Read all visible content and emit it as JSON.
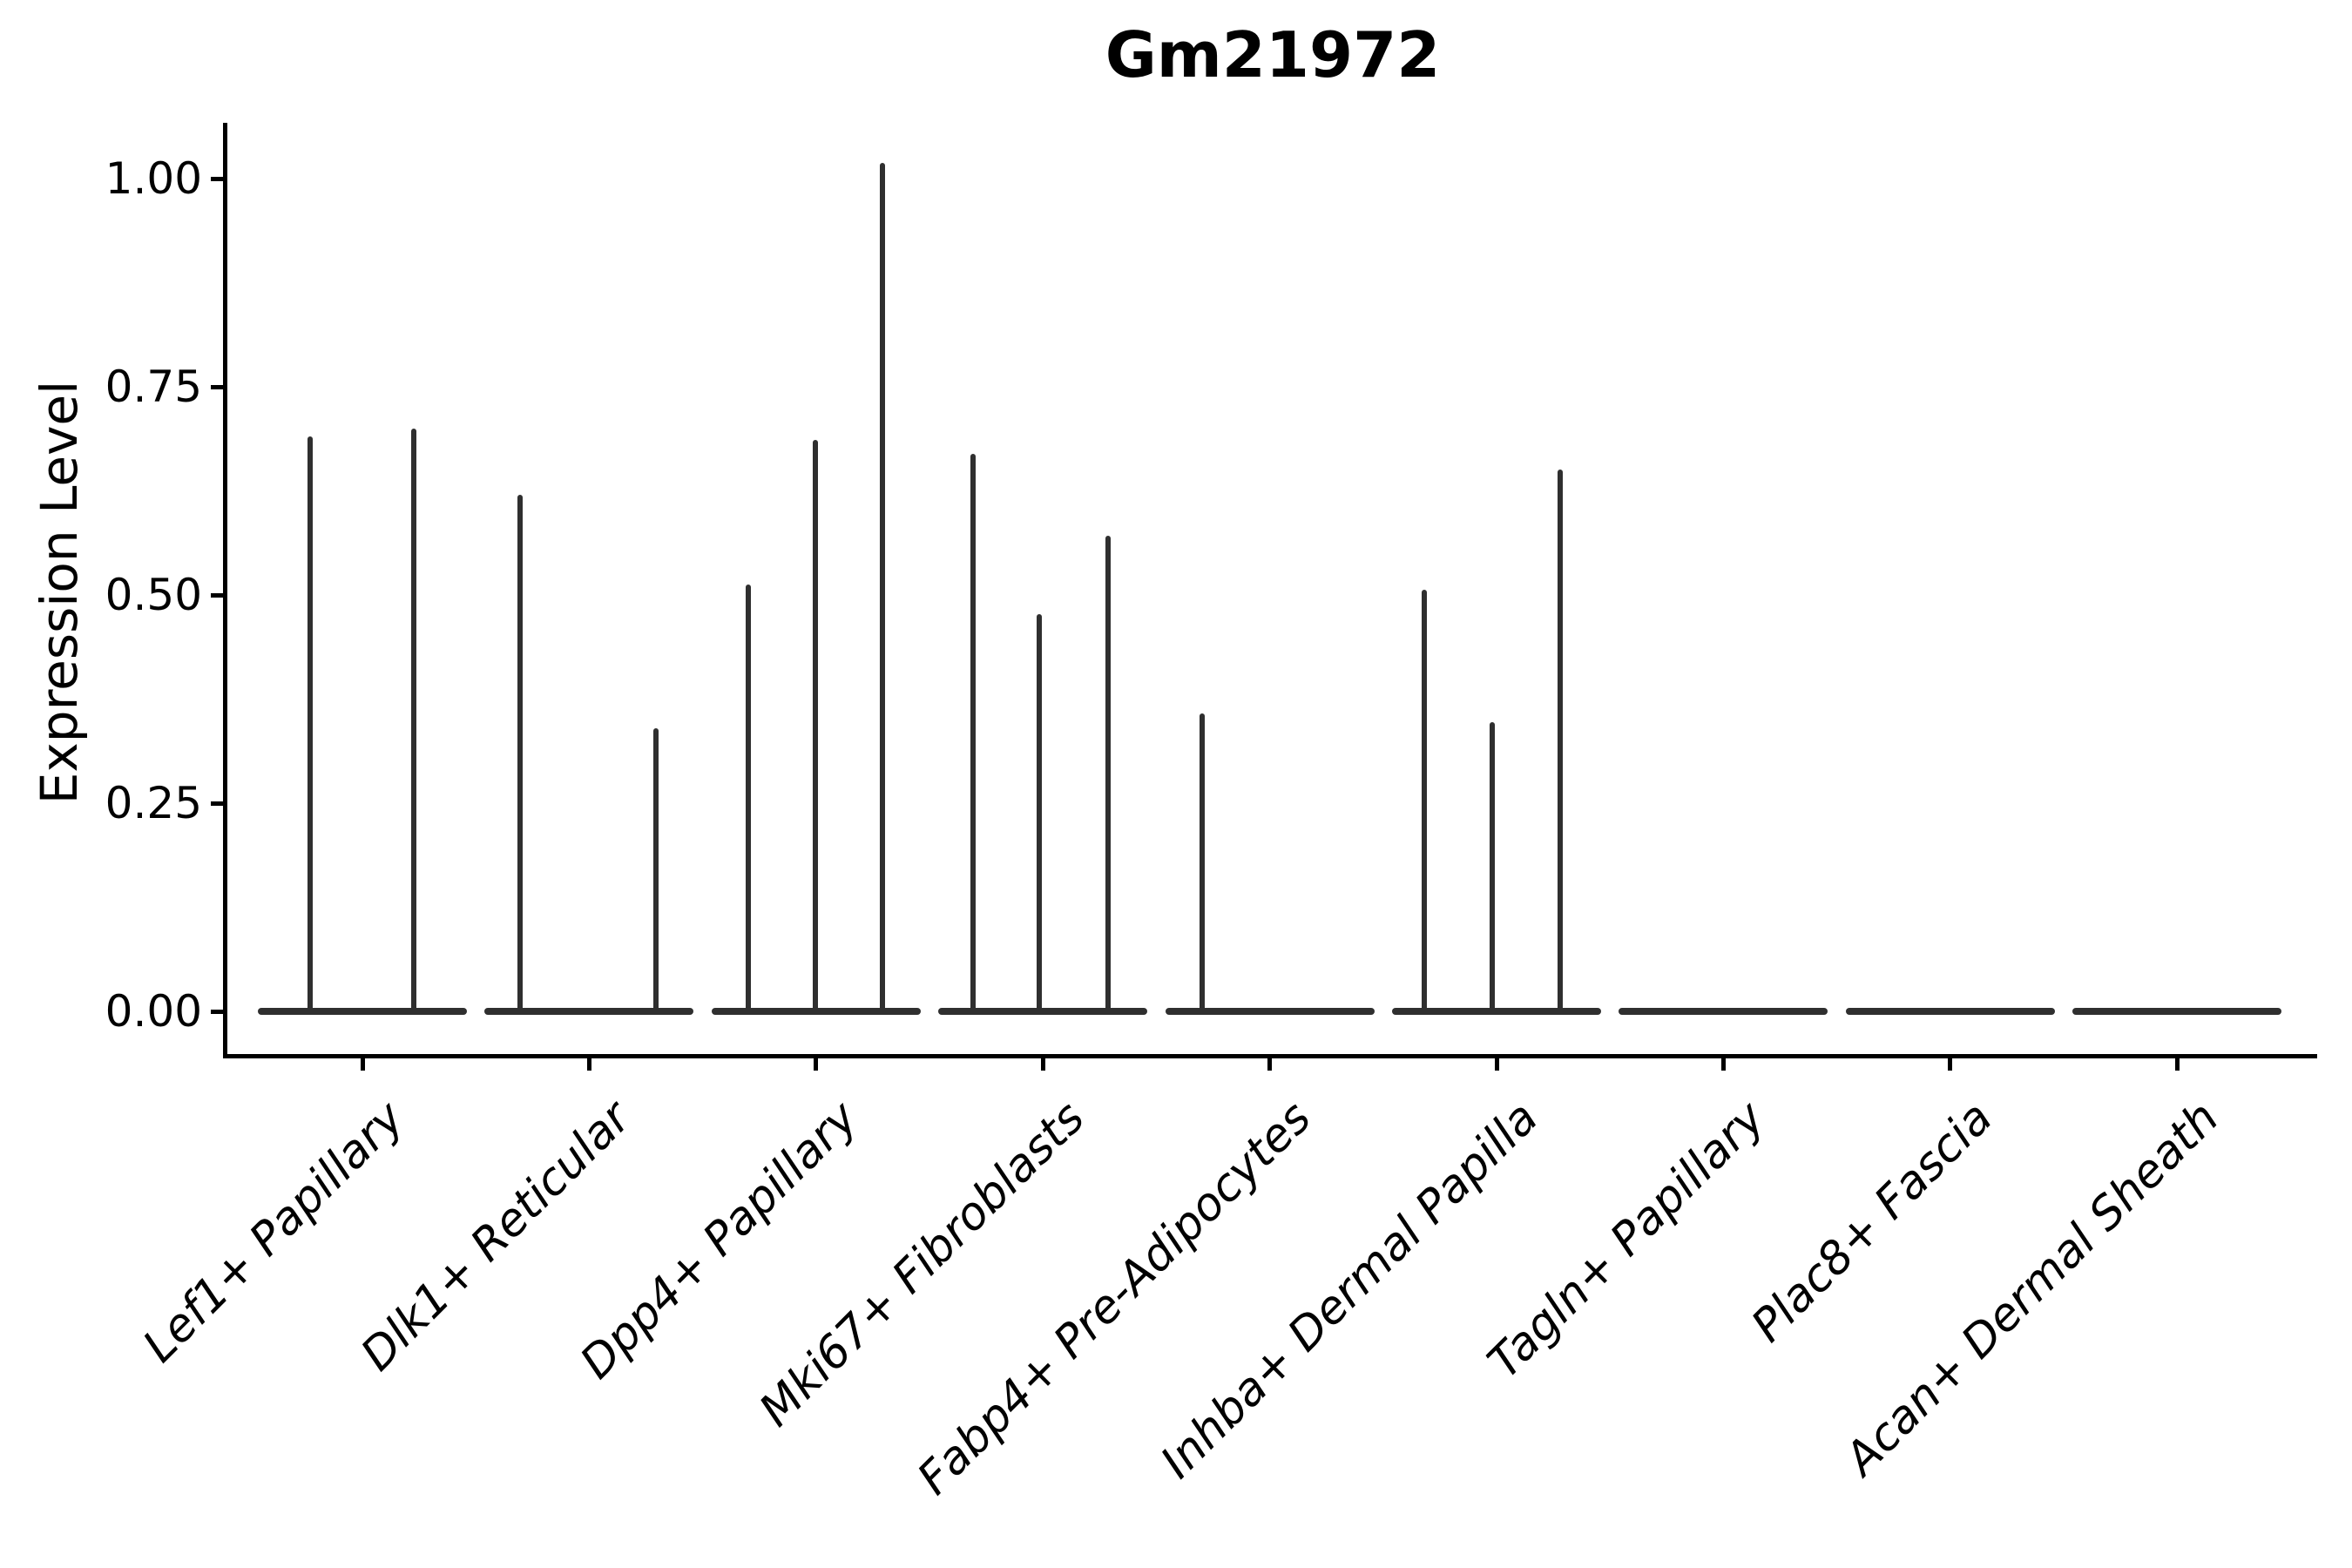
{
  "chart_data": {
    "type": "violin",
    "title": "Gm21972",
    "ylabel": "Expression Level",
    "xlabel": "",
    "grid": false,
    "legend": false,
    "ylim": [
      -0.055,
      1.065
    ],
    "yticks": [
      {
        "value": 0.0,
        "label": "0.00"
      },
      {
        "value": 0.25,
        "label": "0.25"
      },
      {
        "value": 0.5,
        "label": "0.50"
      },
      {
        "value": 0.75,
        "label": "0.75"
      },
      {
        "value": 1.0,
        "label": "1.00"
      }
    ],
    "description": "Violin plot of expression level per cluster; most cells are zero so each violin collapses to a flat base line with thin vertical spikes at expressed values (spike offset is horizontal position within the category, value is the expression level at the spike tip).",
    "categories": [
      {
        "label": "Lef1+ Papillary",
        "spikes": [
          {
            "offset": -60,
            "value": 0.69
          },
          {
            "offset": 59,
            "value": 0.7
          }
        ]
      },
      {
        "label": "Dlk1+ Reticular",
        "spikes": [
          {
            "offset": -79,
            "value": 0.62
          },
          {
            "offset": 77,
            "value": 0.34
          }
        ]
      },
      {
        "label": "Dpp4+ Papillary",
        "spikes": [
          {
            "offset": -78,
            "value": 0.513
          },
          {
            "offset": -1,
            "value": 0.686
          },
          {
            "offset": 76,
            "value": 1.019
          }
        ]
      },
      {
        "label": "Mki67+ Fibroblasts",
        "spikes": [
          {
            "offset": -80,
            "value": 0.669
          },
          {
            "offset": -4,
            "value": 0.477
          },
          {
            "offset": 75,
            "value": 0.571
          }
        ]
      },
      {
        "label": "Fabp4+ Pre-Adipocytes",
        "spikes": [
          {
            "offset": -78,
            "value": 0.358
          }
        ]
      },
      {
        "label": "Inhba+ Dermal Papilla",
        "spikes": [
          {
            "offset": -83,
            "value": 0.506
          },
          {
            "offset": -5,
            "value": 0.347
          },
          {
            "offset": 73,
            "value": 0.651
          }
        ]
      },
      {
        "label": "Tagln+ Papillary",
        "spikes": []
      },
      {
        "label": "Plac8+ Fascia",
        "spikes": []
      },
      {
        "label": "Acan+ Dermal Sheath",
        "spikes": []
      }
    ],
    "colors": {
      "violin_line": "#2f2f2f",
      "axis": "#000000",
      "text": "#000000",
      "background": "#ffffff"
    }
  }
}
